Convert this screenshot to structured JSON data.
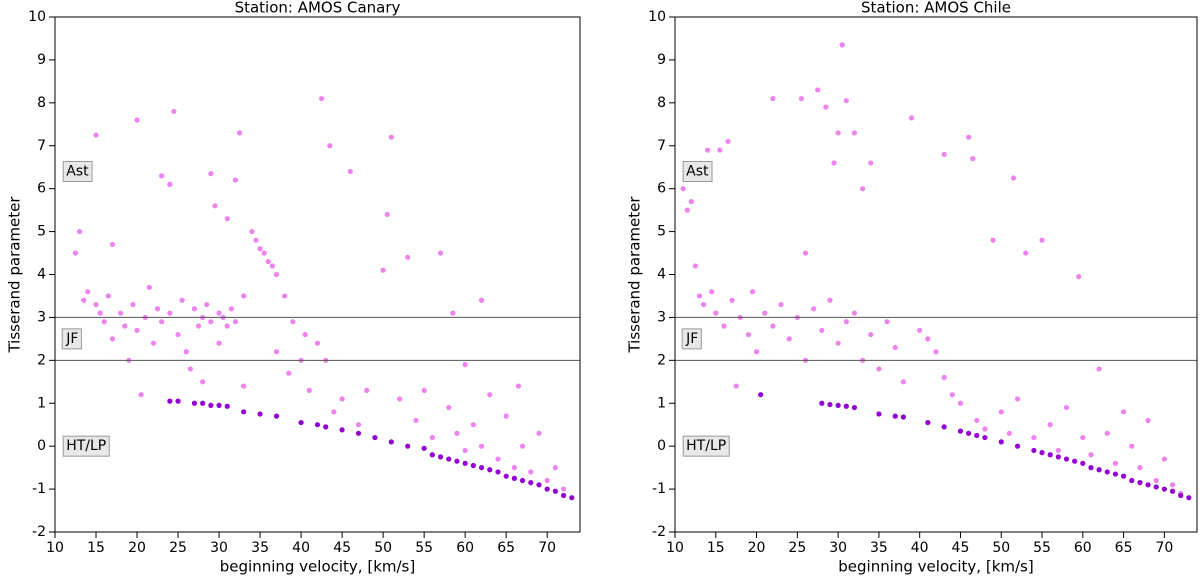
{
  "chart_data": [
    {
      "type": "scatter",
      "title": "Station: AMOS Canary",
      "xlabel": "beginning velocity, [km/s]",
      "ylabel": "Tisserand parameter",
      "xlim": [
        10,
        74
      ],
      "ylim": [
        -2,
        10
      ],
      "xticks": [
        10,
        15,
        20,
        25,
        30,
        35,
        40,
        45,
        50,
        55,
        60,
        65,
        70
      ],
      "yticks": [
        -2,
        -1,
        0,
        1,
        2,
        3,
        4,
        5,
        6,
        7,
        8,
        9,
        10
      ],
      "hlines": [
        3,
        2
      ],
      "hline_color": "#555555",
      "annotations": [
        {
          "text": "Ast",
          "x": 11,
          "y": 6.4
        },
        {
          "text": "JF",
          "x": 11,
          "y": 2.5
        },
        {
          "text": "HT/LP",
          "x": 11,
          "y": 0
        }
      ],
      "series": [
        {
          "color": "#ee82ee",
          "x": [
            12.5,
            13,
            13.5,
            14,
            15,
            15.5,
            15,
            16,
            16.5,
            17,
            17,
            18,
            18.5,
            19,
            19.5,
            20,
            20,
            20.5,
            21,
            21.5,
            22,
            22.5,
            23,
            23,
            24,
            24,
            24.5,
            25,
            25.5,
            26,
            26.5,
            27,
            27.5,
            28,
            28,
            28.5,
            29,
            29,
            29.5,
            30,
            30,
            30.5,
            31,
            31,
            31.5,
            32,
            32,
            32.5,
            33,
            33,
            34,
            34.5,
            35,
            35.5,
            36,
            36.5,
            37,
            37,
            38,
            38.5,
            39,
            40,
            40.5,
            41,
            42,
            42.5,
            43,
            43.5,
            44,
            45,
            46,
            47,
            48,
            50,
            50.5,
            51,
            52,
            53,
            54,
            55,
            56,
            57,
            58,
            58.5,
            59,
            60,
            60,
            61,
            62,
            62,
            63,
            64,
            65,
            66,
            66.5,
            67,
            68,
            69,
            70,
            71,
            72
          ],
          "values": [
            4.5,
            5.0,
            3.4,
            3.6,
            3.3,
            3.1,
            7.25,
            2.9,
            3.5,
            4.7,
            2.5,
            3.1,
            2.8,
            2.0,
            3.3,
            7.6,
            2.7,
            1.2,
            3.0,
            3.7,
            2.4,
            3.2,
            6.3,
            2.9,
            3.1,
            6.1,
            7.8,
            2.6,
            3.4,
            2.2,
            1.8,
            3.2,
            2.8,
            3.0,
            1.5,
            3.3,
            2.9,
            6.35,
            5.6,
            3.1,
            2.4,
            3.0,
            2.8,
            5.3,
            3.2,
            2.9,
            6.2,
            7.3,
            3.5,
            1.4,
            5.0,
            4.8,
            4.6,
            4.5,
            4.3,
            4.2,
            4.0,
            2.2,
            3.5,
            1.7,
            2.9,
            2.0,
            2.6,
            1.3,
            2.4,
            8.1,
            2.0,
            7.0,
            0.8,
            1.1,
            6.4,
            0.5,
            1.3,
            4.1,
            5.4,
            7.2,
            1.1,
            4.4,
            0.6,
            1.3,
            0.2,
            4.5,
            0.9,
            3.1,
            0.3,
            1.9,
            -0.1,
            0.5,
            3.4,
            0.0,
            1.2,
            -0.3,
            0.7,
            -0.5,
            1.4,
            0.0,
            -0.6,
            0.3,
            -0.8,
            -0.5,
            -1.0
          ]
        },
        {
          "color": "#9400d3",
          "x": [
            24,
            25,
            27,
            28,
            29,
            30,
            31,
            33,
            35,
            37,
            40,
            42,
            43,
            45,
            47,
            49,
            51,
            53,
            55,
            56,
            57,
            58,
            59,
            60,
            61,
            62,
            63,
            64,
            65,
            66,
            67,
            68,
            69,
            70,
            71,
            72,
            73
          ],
          "values": [
            1.05,
            1.05,
            1.0,
            1.0,
            0.95,
            0.95,
            0.93,
            0.8,
            0.75,
            0.7,
            0.55,
            0.5,
            0.45,
            0.38,
            0.3,
            0.2,
            0.1,
            0.0,
            -0.05,
            -0.2,
            -0.25,
            -0.3,
            -0.35,
            -0.4,
            -0.45,
            -0.5,
            -0.55,
            -0.6,
            -0.7,
            -0.75,
            -0.8,
            -0.85,
            -0.9,
            -1.0,
            -1.05,
            -1.15,
            -1.2
          ]
        }
      ]
    },
    {
      "type": "scatter",
      "title": "Station: AMOS Chile",
      "xlabel": "beginning velocity, [km/s]",
      "ylabel": "Tisserand parameter",
      "xlim": [
        10,
        74
      ],
      "ylim": [
        -2,
        10
      ],
      "xticks": [
        10,
        15,
        20,
        25,
        30,
        35,
        40,
        45,
        50,
        55,
        60,
        65,
        70
      ],
      "yticks": [
        -2,
        -1,
        0,
        1,
        2,
        3,
        4,
        5,
        6,
        7,
        8,
        9,
        10
      ],
      "hlines": [
        3,
        2
      ],
      "hline_color": "#555555",
      "annotations": [
        {
          "text": "Ast",
          "x": 11,
          "y": 6.4
        },
        {
          "text": "JF",
          "x": 11,
          "y": 2.5
        },
        {
          "text": "HT/LP",
          "x": 11,
          "y": 0
        }
      ],
      "series": [
        {
          "color": "#ee82ee",
          "x": [
            11,
            11.5,
            12,
            12.5,
            13,
            13.5,
            14,
            14.5,
            15,
            15.5,
            16,
            16.5,
            17,
            17.5,
            18,
            19,
            19.5,
            20,
            21,
            22,
            22,
            23,
            24,
            25,
            25.5,
            26,
            26,
            27,
            27.5,
            28,
            28.5,
            29,
            29.5,
            30,
            30,
            30.5,
            31,
            31,
            32,
            32,
            33,
            33,
            34,
            34,
            35,
            36,
            37,
            38,
            39,
            40,
            41,
            42,
            43,
            43,
            44,
            45,
            46,
            46.5,
            47,
            48,
            49,
            50,
            51,
            51.5,
            52,
            53,
            54,
            55,
            56,
            57,
            58,
            59.5,
            60,
            61,
            62,
            63,
            64,
            65,
            66,
            67,
            68,
            69,
            70,
            71,
            72
          ],
          "values": [
            6.0,
            5.5,
            5.7,
            4.2,
            3.5,
            3.3,
            6.9,
            3.6,
            3.1,
            6.9,
            2.8,
            7.1,
            3.4,
            1.4,
            3.0,
            2.6,
            3.6,
            2.2,
            3.1,
            8.1,
            2.8,
            3.3,
            2.5,
            3.0,
            8.1,
            4.5,
            2.0,
            3.2,
            8.3,
            2.7,
            7.9,
            3.4,
            6.6,
            2.4,
            7.3,
            9.35,
            8.05,
            2.9,
            3.1,
            7.3,
            2.0,
            6.0,
            2.6,
            6.6,
            1.8,
            2.9,
            2.3,
            1.5,
            7.65,
            2.7,
            2.5,
            2.2,
            6.8,
            1.6,
            1.2,
            1.0,
            7.2,
            6.7,
            0.6,
            0.4,
            4.8,
            0.8,
            0.3,
            6.25,
            1.1,
            4.5,
            0.2,
            4.8,
            0.5,
            -0.1,
            0.9,
            3.95,
            0.2,
            -0.2,
            1.8,
            0.3,
            -0.4,
            0.8,
            0.0,
            -0.5,
            0.6,
            -0.8,
            -0.3,
            -0.9,
            -1.1
          ]
        },
        {
          "color": "#9400d3",
          "x": [
            20.5,
            28,
            29,
            30,
            31,
            32,
            35,
            37,
            38,
            41,
            43,
            45,
            46,
            47,
            48,
            50,
            52,
            54,
            55,
            56,
            57,
            58,
            59,
            60,
            61,
            62,
            63,
            64,
            65,
            66,
            67,
            68,
            69,
            70,
            71,
            72,
            73
          ],
          "values": [
            1.2,
            1.0,
            0.97,
            0.95,
            0.93,
            0.9,
            0.75,
            0.7,
            0.68,
            0.55,
            0.45,
            0.35,
            0.3,
            0.25,
            0.2,
            0.1,
            0.0,
            -0.1,
            -0.15,
            -0.2,
            -0.25,
            -0.3,
            -0.35,
            -0.4,
            -0.5,
            -0.55,
            -0.6,
            -0.65,
            -0.7,
            -0.8,
            -0.85,
            -0.9,
            -0.95,
            -1.0,
            -1.05,
            -1.15,
            -1.2
          ]
        }
      ]
    }
  ]
}
